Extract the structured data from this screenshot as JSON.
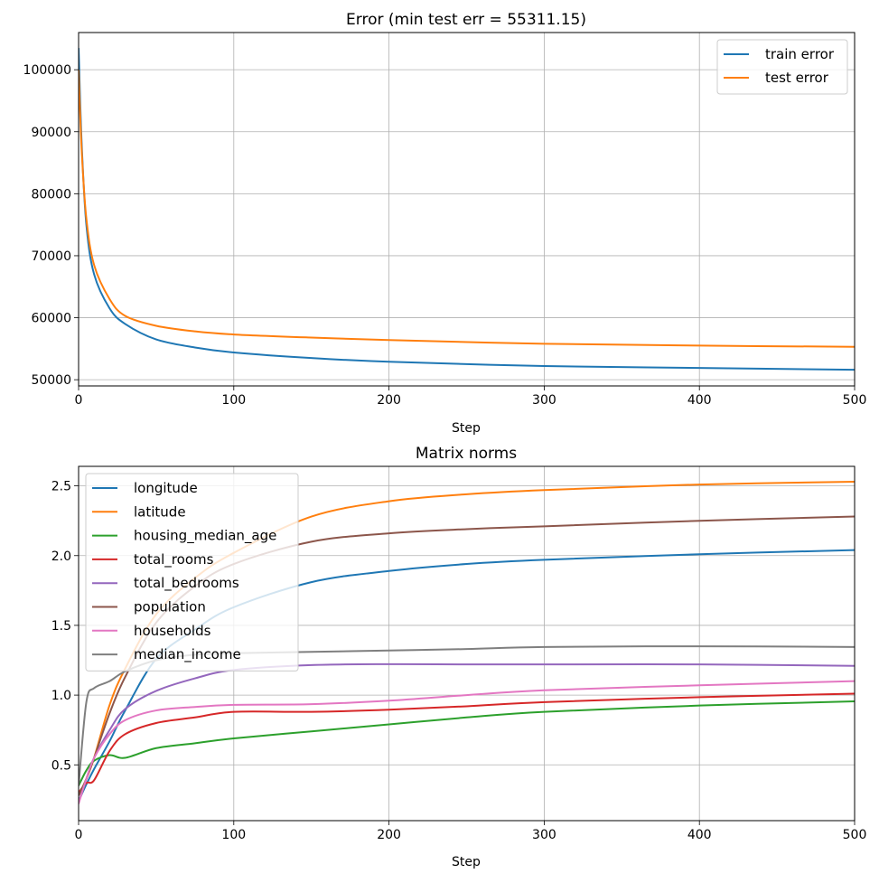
{
  "chart_data": [
    {
      "type": "line",
      "title": "Error (min test err = 55311.15)",
      "xlabel": "Step",
      "ylabel": "",
      "xlim": [
        0,
        500
      ],
      "ylim": [
        49000,
        106000
      ],
      "xticks": [
        0,
        100,
        200,
        300,
        400,
        500
      ],
      "yticks": [
        50000,
        60000,
        70000,
        80000,
        90000,
        100000
      ],
      "grid": true,
      "legend": "top-right",
      "x": [
        0,
        2,
        5,
        10,
        20,
        30,
        50,
        75,
        100,
        150,
        200,
        300,
        400,
        500
      ],
      "series": [
        {
          "name": "train error",
          "color": "#1f77b4",
          "values": [
            103500,
            88000,
            75000,
            67000,
            61500,
            59000,
            56500,
            55200,
            54400,
            53500,
            52900,
            52200,
            51900,
            51600
          ]
        },
        {
          "name": "test error",
          "color": "#ff7f0e",
          "values": [
            100000,
            87000,
            76000,
            68500,
            63000,
            60300,
            58700,
            57800,
            57300,
            56800,
            56400,
            55800,
            55500,
            55311
          ]
        }
      ]
    },
    {
      "type": "line",
      "title": "Matrix norms",
      "xlabel": "Step",
      "ylabel": "",
      "xlim": [
        0,
        500
      ],
      "ylim": [
        0.1,
        2.64
      ],
      "xticks": [
        0,
        100,
        200,
        300,
        400,
        500
      ],
      "yticks": [
        0.5,
        1.0,
        1.5,
        2.0,
        2.5
      ],
      "grid": true,
      "legend": "top-left",
      "x": [
        0,
        5,
        10,
        20,
        30,
        50,
        75,
        100,
        150,
        200,
        250,
        300,
        400,
        500
      ],
      "series": [
        {
          "name": "longitude",
          "color": "#1f77b4",
          "values": [
            0.24,
            0.36,
            0.47,
            0.67,
            0.89,
            1.26,
            1.47,
            1.63,
            1.81,
            1.89,
            1.94,
            1.97,
            2.01,
            2.04
          ]
        },
        {
          "name": "latitude",
          "color": "#ff7f0e",
          "values": [
            0.28,
            0.4,
            0.55,
            0.93,
            1.19,
            1.58,
            1.84,
            2.02,
            2.28,
            2.39,
            2.44,
            2.47,
            2.51,
            2.53
          ]
        },
        {
          "name": "housing_median_age",
          "color": "#2ca02c",
          "values": [
            0.35,
            0.46,
            0.53,
            0.57,
            0.55,
            0.62,
            0.655,
            0.69,
            0.74,
            0.79,
            0.84,
            0.88,
            0.925,
            0.955
          ]
        },
        {
          "name": "total_rooms",
          "color": "#d62728",
          "values": [
            0.3,
            0.37,
            0.39,
            0.6,
            0.72,
            0.8,
            0.84,
            0.88,
            0.88,
            0.895,
            0.92,
            0.95,
            0.985,
            1.01
          ]
        },
        {
          "name": "total_bedrooms",
          "color": "#9467bd",
          "values": [
            0.23,
            0.4,
            0.55,
            0.75,
            0.9,
            1.03,
            1.12,
            1.18,
            1.215,
            1.222,
            1.22,
            1.22,
            1.22,
            1.21
          ]
        },
        {
          "name": "population",
          "color": "#8c564b",
          "values": [
            0.28,
            0.4,
            0.55,
            0.87,
            1.13,
            1.52,
            1.78,
            1.94,
            2.1,
            2.16,
            2.19,
            2.21,
            2.25,
            2.28
          ]
        },
        {
          "name": "households",
          "color": "#e377c2",
          "values": [
            0.22,
            0.4,
            0.55,
            0.72,
            0.82,
            0.89,
            0.915,
            0.93,
            0.935,
            0.96,
            1.0,
            1.035,
            1.07,
            1.1
          ]
        },
        {
          "name": "median_income",
          "color": "#7f7f7f",
          "values": [
            0.35,
            0.95,
            1.05,
            1.1,
            1.17,
            1.25,
            1.29,
            1.3,
            1.31,
            1.32,
            1.33,
            1.345,
            1.35,
            1.345
          ]
        }
      ]
    }
  ]
}
